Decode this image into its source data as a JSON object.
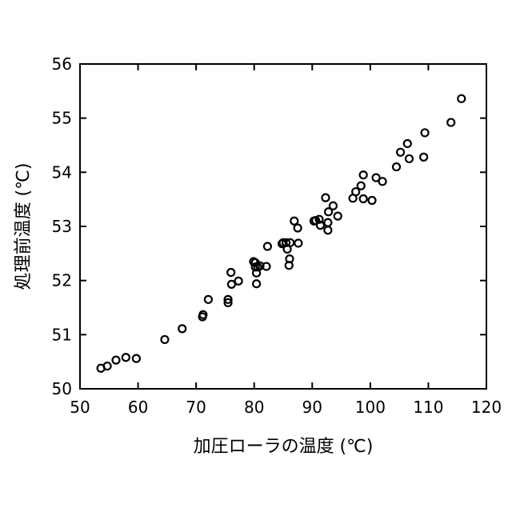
{
  "chart_data": {
    "type": "scatter",
    "xlabel": "加圧ローラの温度 (℃)",
    "ylabel": "処理前温度 (℃)",
    "xlim": [
      50,
      120
    ],
    "ylim": [
      50,
      56
    ],
    "xticks": [
      "50",
      "60",
      "70",
      "80",
      "90",
      "100",
      "110",
      "120"
    ],
    "yticks": [
      "50",
      "51",
      "52",
      "53",
      "54",
      "55",
      "56"
    ],
    "grid": false,
    "legend": "none",
    "marker": "open-circle",
    "series": [
      {
        "points": [
          [
            53.6,
            50.38
          ],
          [
            54.7,
            50.42
          ],
          [
            56.2,
            50.53
          ],
          [
            57.9,
            50.58
          ],
          [
            59.7,
            50.56
          ],
          [
            64.6,
            50.91
          ],
          [
            67.6,
            51.11
          ],
          [
            71.1,
            51.33
          ],
          [
            71.2,
            51.37
          ],
          [
            72.1,
            51.65
          ],
          [
            75.5,
            51.59
          ],
          [
            75.5,
            51.65
          ],
          [
            76.0,
            52.15
          ],
          [
            76.1,
            51.93
          ],
          [
            77.3,
            51.99
          ],
          [
            79.9,
            52.35
          ],
          [
            80.2,
            52.33
          ],
          [
            80.2,
            52.25
          ],
          [
            80.4,
            52.14
          ],
          [
            80.4,
            51.94
          ],
          [
            80.6,
            52.25
          ],
          [
            81.0,
            52.27
          ],
          [
            82.1,
            52.26
          ],
          [
            82.3,
            52.63
          ],
          [
            84.8,
            52.68
          ],
          [
            85.0,
            52.7
          ],
          [
            85.5,
            52.7
          ],
          [
            85.7,
            52.58
          ],
          [
            86.1,
            52.4
          ],
          [
            86.0,
            52.28
          ],
          [
            86.2,
            52.7
          ],
          [
            86.9,
            53.1
          ],
          [
            87.5,
            52.97
          ],
          [
            87.6,
            52.69
          ],
          [
            90.3,
            53.1
          ],
          [
            90.6,
            53.11
          ],
          [
            91.2,
            53.13
          ],
          [
            91.4,
            53.02
          ],
          [
            92.3,
            53.53
          ],
          [
            92.7,
            53.07
          ],
          [
            92.7,
            52.93
          ],
          [
            92.8,
            53.27
          ],
          [
            93.6,
            53.38
          ],
          [
            94.4,
            53.19
          ],
          [
            97.0,
            53.52
          ],
          [
            97.5,
            53.64
          ],
          [
            98.4,
            53.75
          ],
          [
            98.8,
            53.95
          ],
          [
            98.8,
            53.51
          ],
          [
            100.3,
            53.48
          ],
          [
            101.0,
            53.9
          ],
          [
            102.1,
            53.83
          ],
          [
            104.5,
            54.1
          ],
          [
            105.2,
            54.37
          ],
          [
            106.4,
            54.53
          ],
          [
            106.7,
            54.25
          ],
          [
            109.2,
            54.28
          ],
          [
            109.4,
            54.73
          ],
          [
            113.9,
            54.92
          ],
          [
            115.7,
            55.36
          ]
        ]
      }
    ]
  }
}
